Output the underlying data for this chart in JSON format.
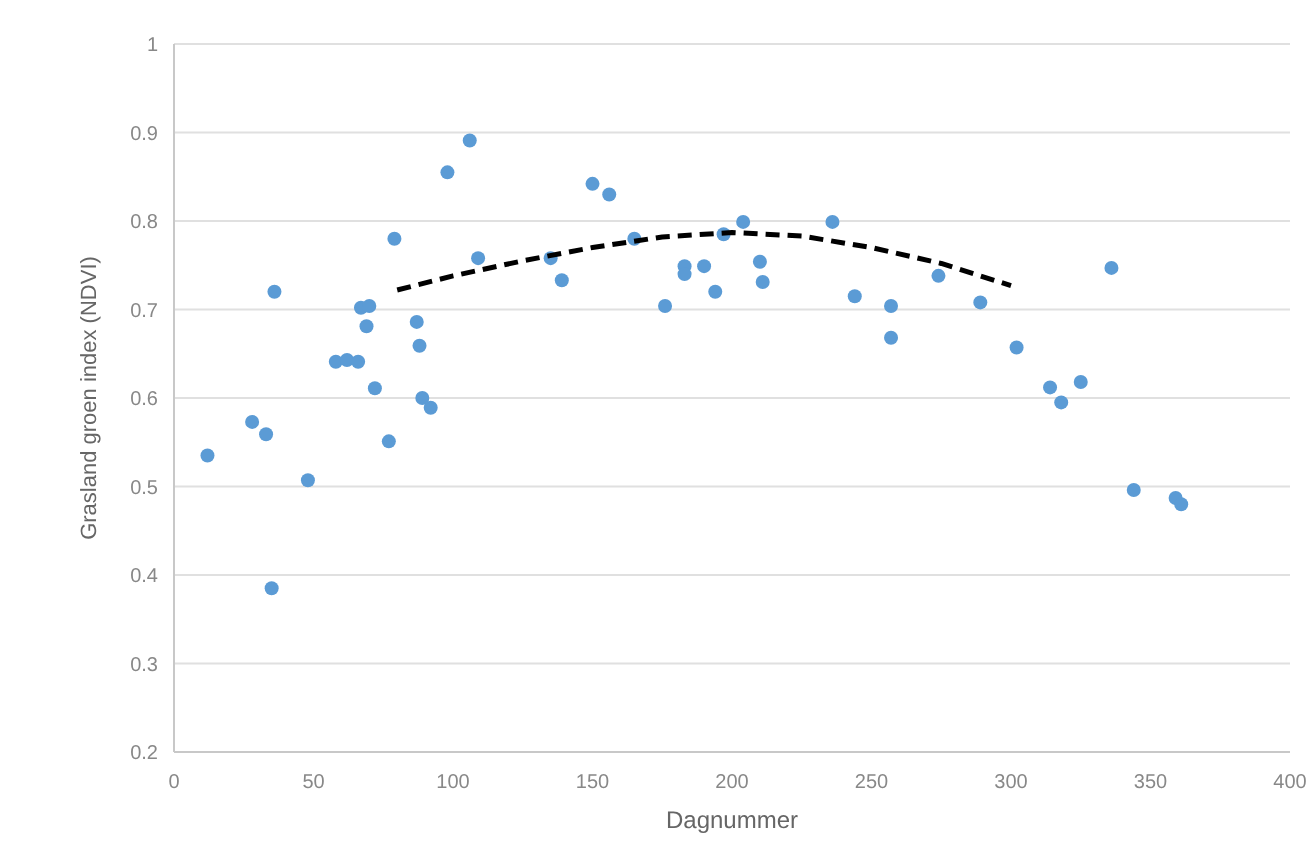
{
  "chart_data": {
    "type": "scatter",
    "xlabel": "Dagnummer",
    "ylabel": "Grasland groen index (NDVI)",
    "xlim": [
      0,
      400
    ],
    "ylim": [
      0.2,
      1
    ],
    "xticks": [
      0,
      50,
      100,
      150,
      200,
      250,
      300,
      350,
      400
    ],
    "yticks": [
      0.2,
      0.3,
      0.4,
      0.5,
      0.6,
      0.7,
      0.8,
      0.9,
      1
    ],
    "grid": "y",
    "series": [
      {
        "color": "#5b9bd5",
        "marker": "circle",
        "x": [
          12,
          28,
          33,
          36,
          35,
          48,
          58,
          62,
          66,
          67,
          69,
          70,
          72,
          77,
          79,
          87,
          88,
          89,
          92,
          98,
          106,
          109,
          135,
          139,
          150,
          156,
          165,
          176,
          183,
          183,
          190,
          194,
          197,
          204,
          210,
          211,
          236,
          244,
          257,
          257,
          274,
          289,
          302,
          314,
          318,
          325,
          336,
          344,
          359,
          361
        ],
        "values": [
          0.535,
          0.573,
          0.559,
          0.72,
          0.385,
          0.507,
          0.641,
          0.643,
          0.641,
          0.702,
          0.681,
          0.704,
          0.611,
          0.551,
          0.78,
          0.686,
          0.659,
          0.6,
          0.589,
          0.855,
          0.891,
          0.758,
          0.758,
          0.733,
          0.842,
          0.83,
          0.78,
          0.704,
          0.749,
          0.74,
          0.749,
          0.72,
          0.785,
          0.799,
          0.754,
          0.731,
          0.799,
          0.715,
          0.704,
          0.668,
          0.738,
          0.708,
          0.657,
          0.612,
          0.595,
          0.618,
          0.747,
          0.496,
          0.487,
          0.48
        ]
      },
      {
        "type": "line",
        "color": "#000000",
        "line_style": "dashed",
        "marker": "none",
        "x": [
          80,
          100,
          125,
          150,
          175,
          200,
          225,
          250,
          275,
          300
        ],
        "values": [
          0.722,
          0.738,
          0.755,
          0.77,
          0.782,
          0.787,
          0.783,
          0.77,
          0.752,
          0.727
        ]
      }
    ]
  }
}
